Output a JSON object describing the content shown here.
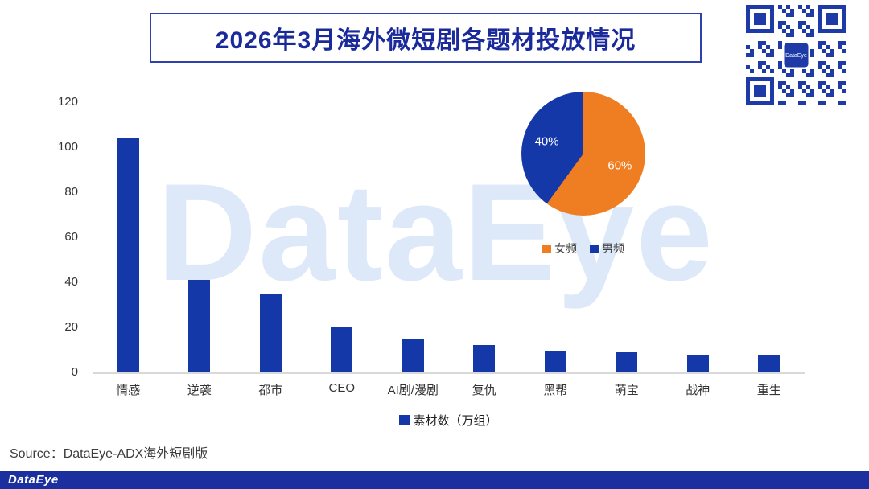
{
  "title": "2026年3月海外微短剧各题材投放情况",
  "watermark": "DataEye",
  "source": "Source：DataEye-ADX海外短剧版",
  "footer_logo": "DataEye",
  "colors": {
    "primary_blue": "#1438a8",
    "orange": "#ef7d22",
    "title_blue": "#1b2a9b",
    "footer_blue": "#1b2f9e",
    "qr_blue": "#1d3aa6",
    "watermark_blue": "#a5c6ec"
  },
  "chart_data": [
    {
      "type": "bar",
      "categories": [
        "情感",
        "逆袭",
        "都市",
        "CEO",
        "AI剧/漫剧",
        "复仇",
        "黑帮",
        "萌宝",
        "战神",
        "重生"
      ],
      "values": [
        104,
        41,
        35,
        20,
        15,
        12,
        9.5,
        9,
        8,
        7.5
      ],
      "bar_color": "#1438a8",
      "ylim": [
        0,
        120
      ],
      "yticks": [
        0,
        20,
        40,
        60,
        80,
        100,
        120
      ],
      "grid": false,
      "legend": [
        {
          "label": "素材数（万组）",
          "color": "#1438a8"
        }
      ],
      "legend_position": "bottom"
    },
    {
      "type": "pie",
      "slices": [
        {
          "label": "女频",
          "value": 60,
          "pct_label": "60%",
          "color": "#ef7d22"
        },
        {
          "label": "男频",
          "value": 40,
          "pct_label": "40%",
          "color": "#1438a8"
        }
      ],
      "start_angle_deg": 0,
      "legend_position": "bottom"
    }
  ]
}
